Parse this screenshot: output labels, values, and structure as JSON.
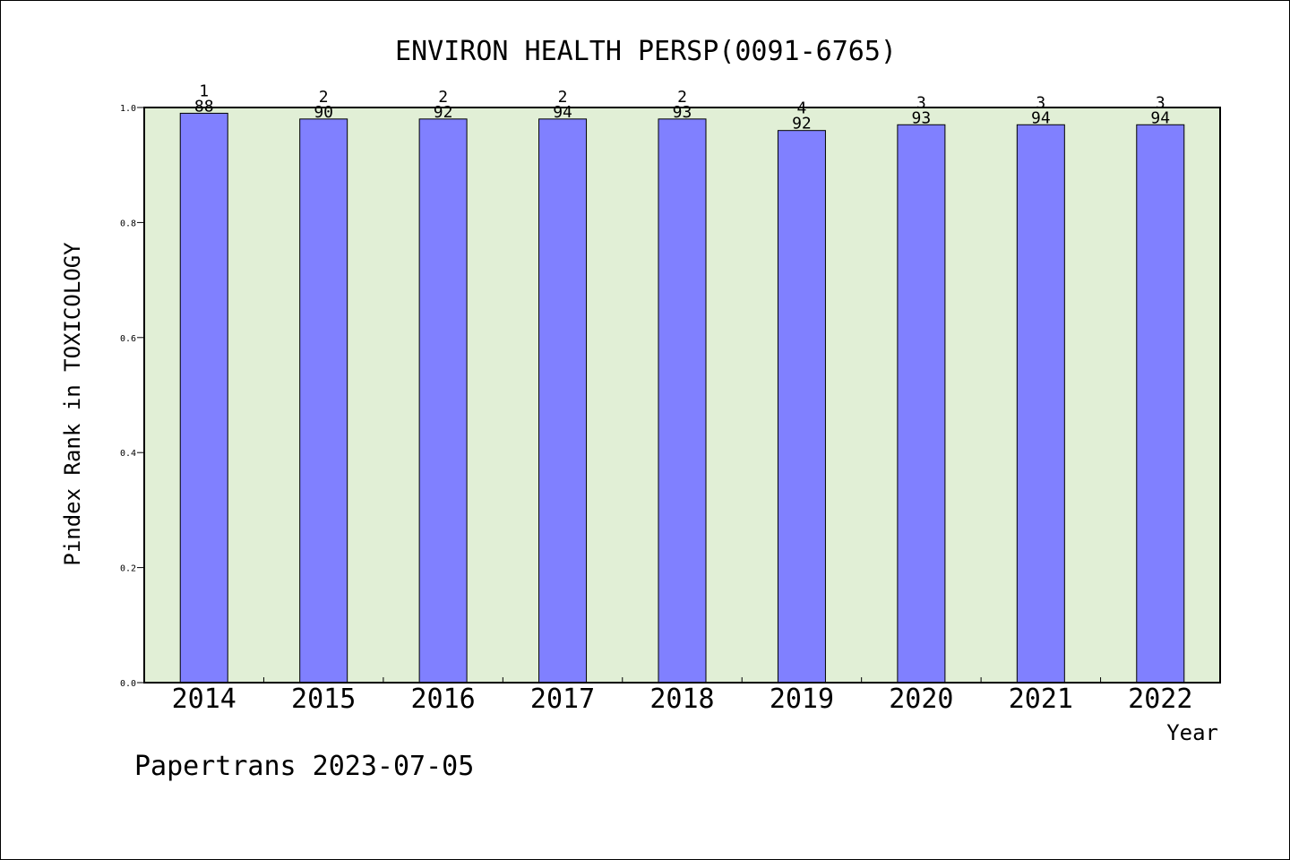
{
  "chart_data": {
    "type": "bar",
    "title": "ENVIRON HEALTH PERSP(0091-6765)",
    "xlabel": "Year",
    "ylabel": "Pindex Rank in TOXICOLOGY",
    "categories": [
      "2014",
      "2015",
      "2016",
      "2017",
      "2018",
      "2019",
      "2020",
      "2021",
      "2022"
    ],
    "series": [
      {
        "values": [
          0.99,
          0.98,
          0.98,
          0.98,
          0.98,
          0.96,
          0.97,
          0.97,
          0.97
        ]
      }
    ],
    "labels_top": [
      "1",
      "2",
      "2",
      "2",
      "2",
      "4",
      "3",
      "3",
      "3"
    ],
    "labels_bottom": [
      "88",
      "90",
      "92",
      "94",
      "93",
      "92",
      "93",
      "94",
      "94"
    ],
    "ylim": [
      0,
      1.0
    ],
    "yticks": [
      "0.0",
      "0.2",
      "0.4",
      "0.6",
      "0.8",
      "1.0"
    ],
    "grid": false,
    "colors": {
      "bar": "#8080ff",
      "plot_background": "#e1efd6",
      "axis": "#000000"
    }
  },
  "footer": {
    "text": "Papertrans 2023-07-05"
  }
}
